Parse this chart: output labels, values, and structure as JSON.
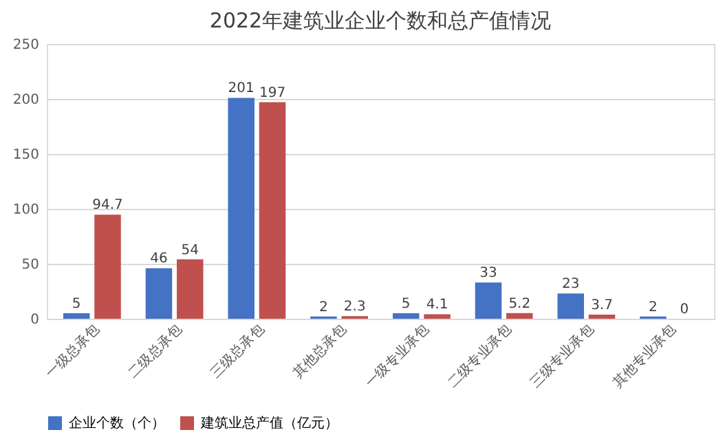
{
  "chart_data": {
    "type": "bar",
    "title": "2022年建筑业企业个数和总产值情况",
    "categories": [
      "一级总承包",
      "二级总承包",
      "三级总承包",
      "其他总承包",
      "一级专业承包",
      "二级专业承包",
      "三级专业承包",
      "其他专业承包"
    ],
    "series": [
      {
        "name": "企业个数（个）",
        "color": "#4472c4",
        "values": [
          5,
          46,
          201,
          2,
          5,
          33,
          23,
          2
        ]
      },
      {
        "name": "建筑业总产值（亿元）",
        "color": "#c0504d",
        "values": [
          94.7,
          54,
          197,
          2.3,
          4.1,
          5.2,
          3.7,
          0
        ]
      }
    ],
    "ylim": [
      0,
      250
    ],
    "yticks": [
      0,
      50,
      100,
      150,
      200,
      250
    ],
    "grid": "y",
    "legend": "bottom",
    "data_labels": true
  }
}
